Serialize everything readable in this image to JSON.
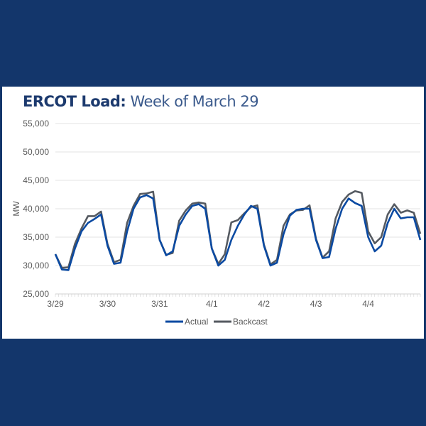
{
  "chart_data": {
    "type": "line",
    "title_bold": "ERCOT Load:",
    "title_rest": "Week of March 29",
    "xlabel": "",
    "ylabel": "MW",
    "ylim": [
      25000,
      55000
    ],
    "yticks": [
      "25,000",
      "30,000",
      "35,000",
      "40,000",
      "45,000",
      "50,000",
      "55,000"
    ],
    "ytick_values": [
      25000,
      30000,
      35000,
      40000,
      45000,
      50000,
      55000
    ],
    "xticks": [
      "3/29",
      "3/30",
      "3/31",
      "4/1",
      "4/2",
      "4/3",
      "4/4"
    ],
    "x_unit": "hours since 3/29 00:00",
    "x": [
      0,
      3,
      6,
      9,
      12,
      15,
      18,
      21,
      24,
      27,
      30,
      33,
      36,
      39,
      42,
      45,
      48,
      51,
      54,
      57,
      60,
      63,
      66,
      69,
      72,
      75,
      78,
      81,
      84,
      87,
      90,
      93,
      96,
      99,
      102,
      105,
      108,
      111,
      114,
      117,
      120,
      123,
      126,
      129,
      132,
      135,
      138,
      141,
      144,
      147,
      150,
      153,
      156,
      159,
      162,
      165,
      168
    ],
    "series": [
      {
        "name": "Actual",
        "color": "#0b4aa2",
        "values": [
          32000,
          29300,
          29200,
          33000,
          36000,
          37500,
          38200,
          39000,
          33500,
          30300,
          30500,
          36000,
          40000,
          42000,
          42400,
          41800,
          34500,
          31800,
          32500,
          37000,
          39000,
          40500,
          40800,
          40000,
          33000,
          30000,
          31000,
          34500,
          37000,
          39000,
          40500,
          40000,
          33500,
          30000,
          30500,
          35500,
          38800,
          39800,
          40000,
          40000,
          34500,
          31300,
          31500,
          36500,
          40000,
          41800,
          41000,
          40500,
          35000,
          32500,
          33500,
          37500,
          40000,
          38300,
          38500,
          38500,
          34500
        ]
      },
      {
        "name": "Backcast",
        "color": "#555a61",
        "values": [
          32000,
          29600,
          29700,
          33800,
          36500,
          38700,
          38700,
          39500,
          33800,
          30600,
          31000,
          37500,
          40500,
          42600,
          42700,
          43000,
          34500,
          31900,
          32200,
          37900,
          39700,
          40900,
          41100,
          40900,
          33000,
          30300,
          32000,
          37600,
          38000,
          39200,
          40300,
          40600,
          33700,
          30200,
          31000,
          37000,
          39000,
          39700,
          39800,
          40600,
          34700,
          31400,
          32500,
          38300,
          41200,
          42500,
          43100,
          42800,
          36000,
          33900,
          35000,
          39000,
          40800,
          39300,
          39700,
          39300,
          35600
        ]
      }
    ],
    "legend": "bottom",
    "grid": true
  }
}
